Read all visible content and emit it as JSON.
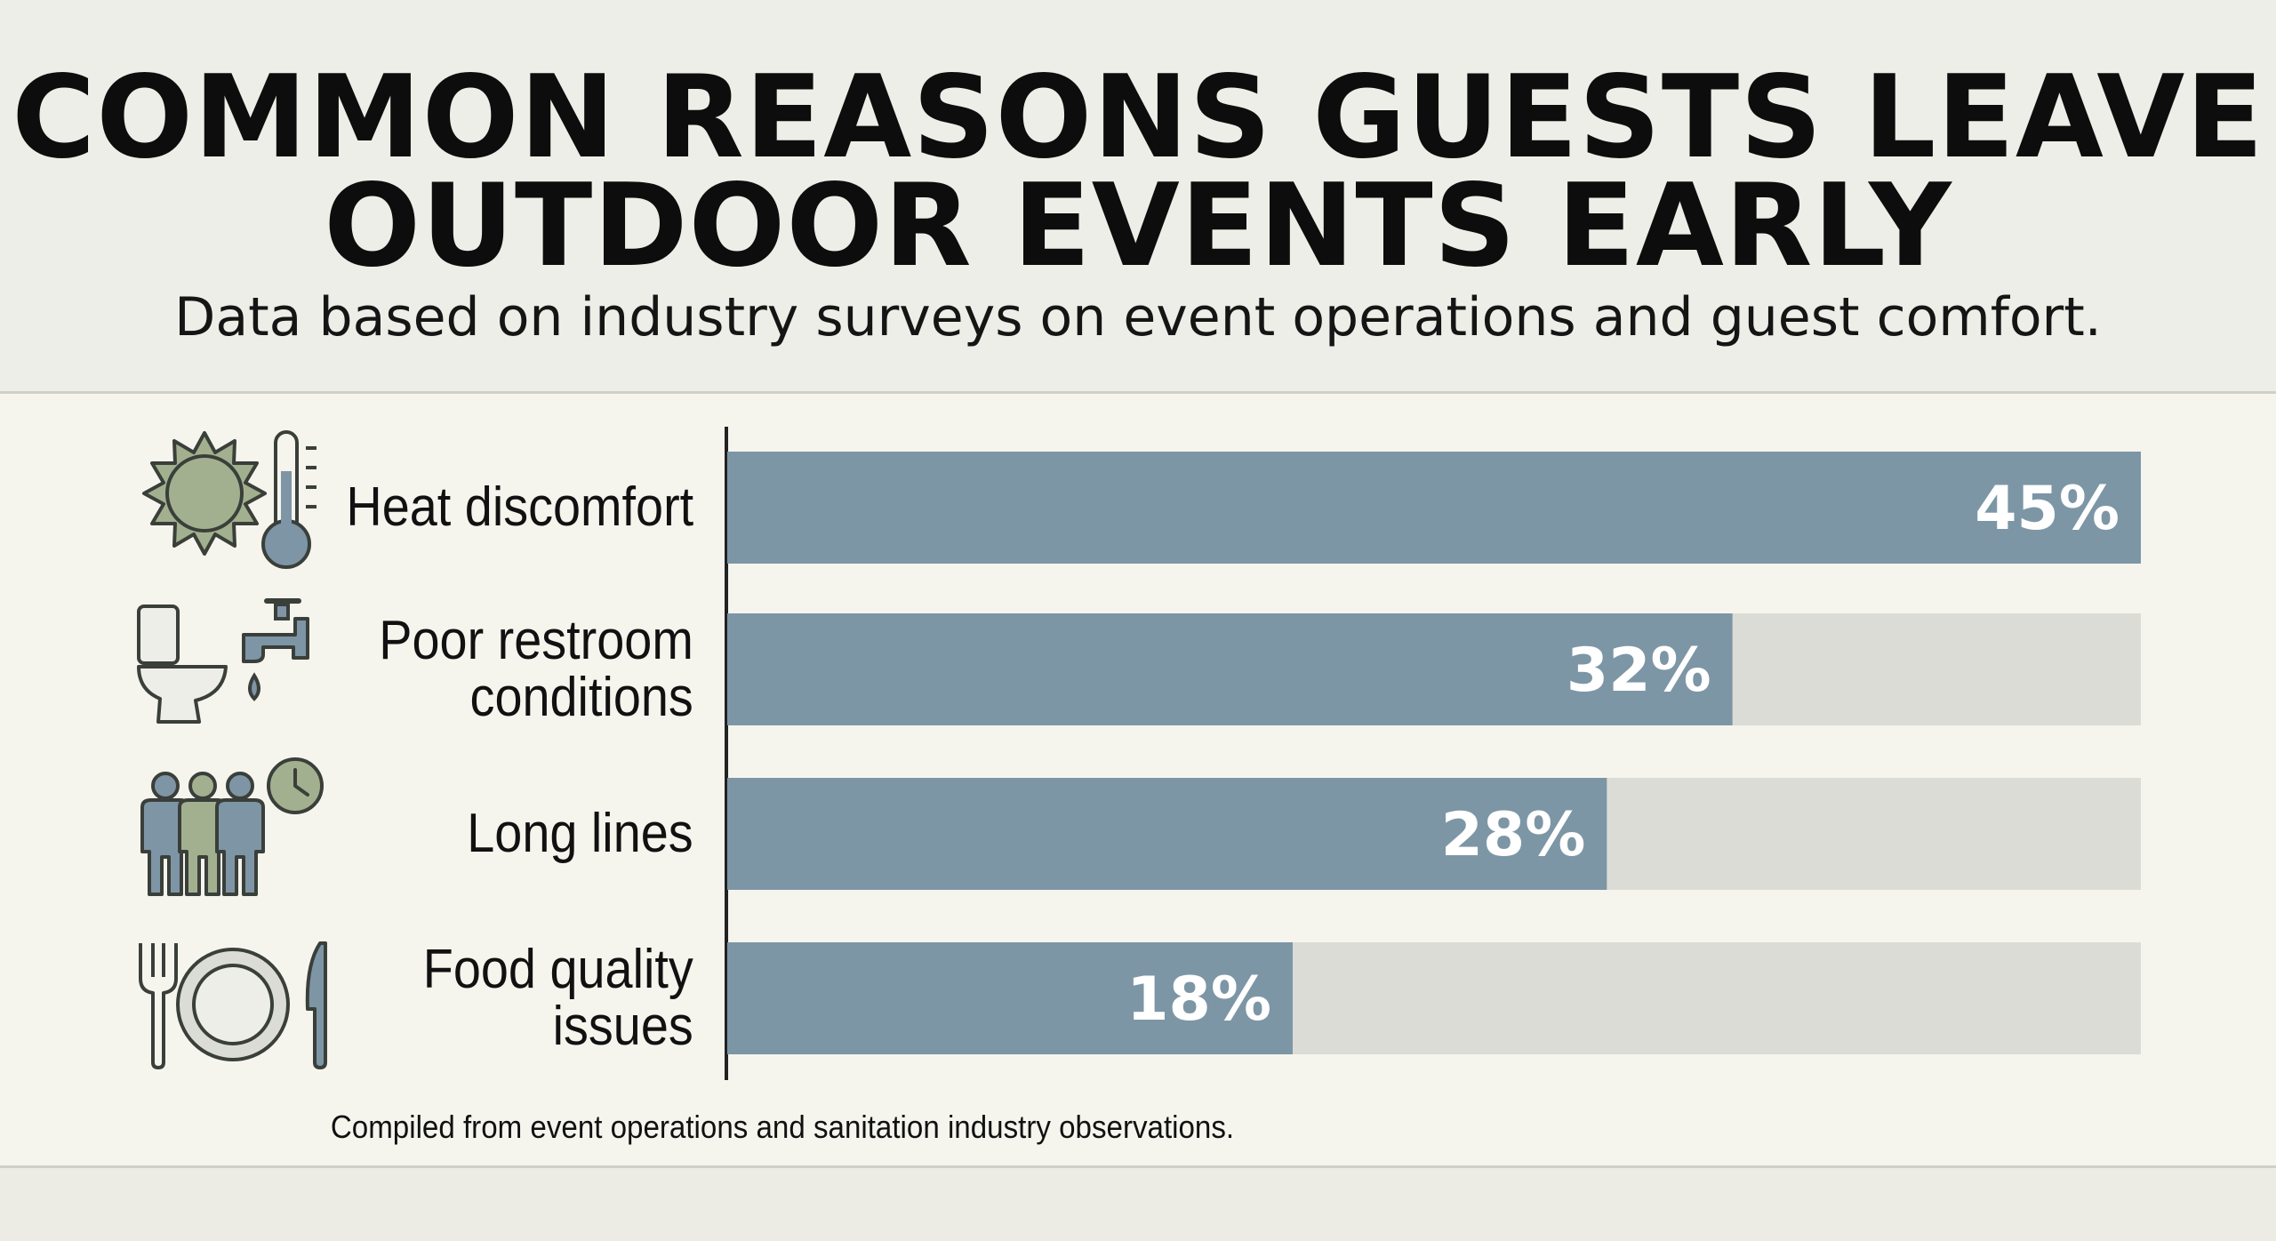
{
  "header": {
    "title_line1": "COMMON REASONS GUESTS LEAVE",
    "title_line2": "OUTDOOR EVENTS EARLY",
    "subtitle": "Data based on industry surveys on event operations and guest comfort."
  },
  "footer": {
    "source": "Compiled from event operations and sanitation industry observations."
  },
  "colors": {
    "bar_fill": "#7d96a6",
    "bar_track": "#dcdcd6",
    "icon_green": "#a3b08f",
    "icon_blue": "#7e95a6",
    "axis": "#222222"
  },
  "chart_data": {
    "type": "bar",
    "orientation": "horizontal",
    "title": "COMMON REASONS GUESTS LEAVE OUTDOOR EVENTS EARLY",
    "subtitle": "Data based on industry surveys on event operations and guest comfort.",
    "categories": [
      "Heat discomfort",
      "Poor restroom\nconditions",
      "Long lines",
      "Food quality\nissues"
    ],
    "values": [
      45,
      32,
      28,
      18
    ],
    "value_labels": [
      "45%",
      "32%",
      "28%",
      "18%"
    ],
    "icons": [
      "sun-thermometer-icon",
      "toilet-faucet-icon",
      "people-clock-icon",
      "plate-cutlery-icon"
    ],
    "xlim": [
      0,
      45
    ],
    "unit": "%",
    "grid": false
  }
}
